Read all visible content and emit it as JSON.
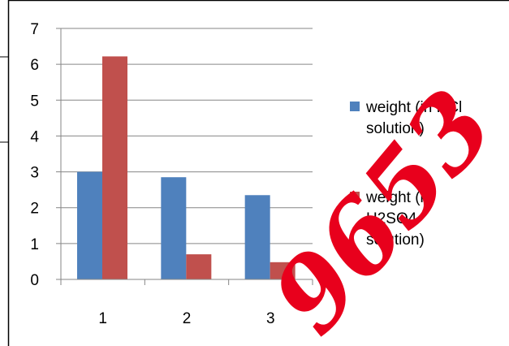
{
  "chart_data": {
    "type": "bar",
    "categories": [
      "1",
      "2",
      "3"
    ],
    "series": [
      {
        "name": "weight (in HCl solution)",
        "name_lines": [
          "weight (in HCl",
          "solution)"
        ],
        "color": "#4f81bd",
        "values": [
          3.0,
          2.85,
          2.35
        ]
      },
      {
        "name": "weight (in H2SO4 solution)",
        "name_lines": [
          "weight (in",
          "H2SO4",
          "solution)"
        ],
        "color": "#c0504d",
        "values": [
          6.22,
          0.7,
          0.48
        ]
      }
    ],
    "ylim": [
      0,
      7
    ],
    "yticks": [
      "0",
      "1",
      "2",
      "3",
      "4",
      "5",
      "6",
      "7"
    ],
    "grid": true,
    "legend_position": "right"
  },
  "watermark": {
    "text": "9653",
    "color": "#e8001c"
  }
}
